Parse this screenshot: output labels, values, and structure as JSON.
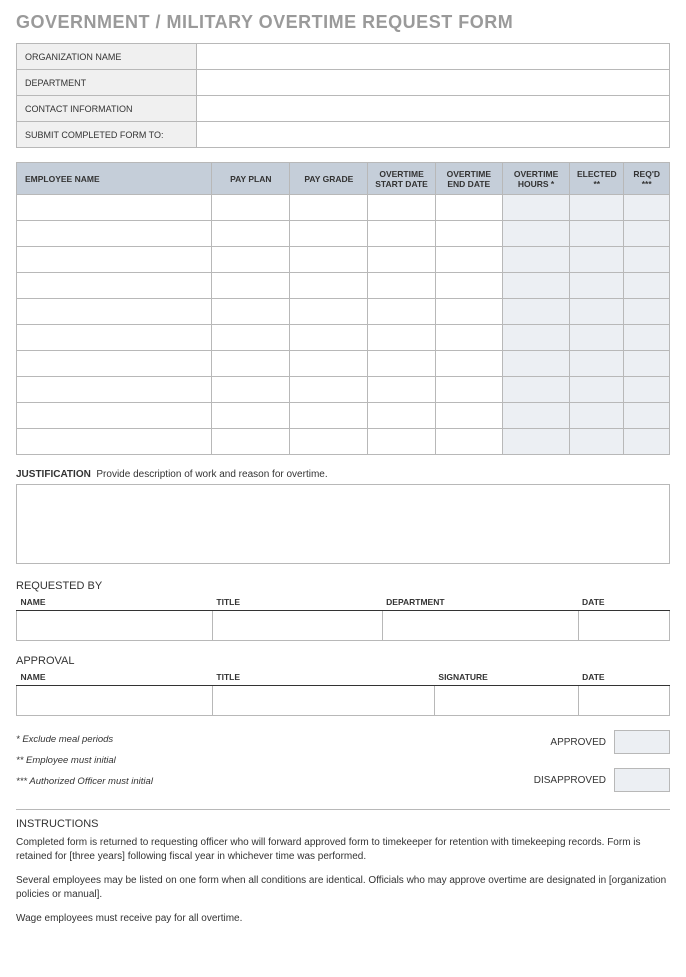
{
  "title": "GOVERNMENT / MILITARY OVERTIME REQUEST FORM",
  "info_rows": [
    "ORGANIZATION NAME",
    "DEPARTMENT",
    "CONTACT INFORMATION",
    "SUBMIT COMPLETED FORM TO:"
  ],
  "emp_headers": {
    "name": "EMPLOYEE NAME",
    "pay_plan": "PAY PLAN",
    "pay_grade": "PAY GRADE",
    "start": "OVERTIME START DATE",
    "end": "OVERTIME END DATE",
    "hours": "OVERTIME HOURS *",
    "elected": "ELECTED **",
    "reqd": "REQ'D ***"
  },
  "emp_row_count": 10,
  "justification": {
    "label": "JUSTIFICATION",
    "hint": "Provide description of work and reason for overtime."
  },
  "requested_by": {
    "title": "REQUESTED BY",
    "cols": [
      "NAME",
      "TITLE",
      "DEPARTMENT",
      "DATE"
    ]
  },
  "approval": {
    "title": "APPROVAL",
    "cols": [
      "NAME",
      "TITLE",
      "SIGNATURE",
      "DATE"
    ]
  },
  "footnotes": [
    "* Exclude meal periods",
    "** Employee must initial",
    "*** Authorized Officer must initial"
  ],
  "approve_labels": {
    "approved": "APPROVED",
    "disapproved": "DISAPPROVED"
  },
  "instructions": {
    "title": "INSTRUCTIONS",
    "paragraphs": [
      "Completed form is returned to requesting officer who will forward approved form to timekeeper for retention with timekeeping records. Form is retained for [three years] following fiscal year in whichever time was performed.",
      "Several employees may be listed on one form when all conditions are identical. Officials who may approve overtime are designated in [organization policies or manual].",
      "Wage employees must receive pay for all overtime."
    ]
  },
  "colors": {
    "title_gray": "#9a9a9a",
    "header_blue": "#c5ced9",
    "shade_blue": "#eceff3",
    "label_gray": "#f0f0f0",
    "border": "#b8b8b8"
  }
}
